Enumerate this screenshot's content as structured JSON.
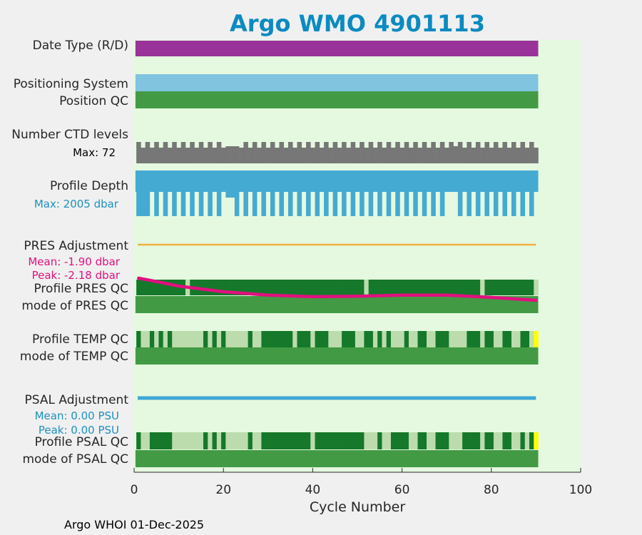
{
  "chart_data": {
    "type": "bar",
    "title": "Argo WMO 4901113",
    "xlabel": "Cycle Number",
    "xlim": [
      0,
      100
    ],
    "x_ticks": [
      "0",
      "20",
      "40",
      "60",
      "80",
      "100"
    ],
    "footer": "Argo WHOI 01-Dec-2025",
    "n_cycles": 90,
    "colors": {
      "title": "#0b8bc0",
      "plot_bg": "#e5f9e0",
      "date_type": "#993399",
      "positioning": "#80c4e0",
      "qc_mode": "#439a45",
      "ctd": "#777777",
      "depth": "#45aad2",
      "pres_adj": "#f0b040",
      "pres_line": "#e0107f",
      "qc_good": "#15782a",
      "qc_light": "#bcdcad",
      "qc_yellow": "#ffff00",
      "psal_adj": "#3fa8d6",
      "pres_text": "#e0107f",
      "psal_text": "#1e90c0",
      "depth_text": "#1e90c0"
    },
    "rows": {
      "date_type": {
        "label": "Date Type (R/D)"
      },
      "positioning": {
        "label": "Positioning System"
      },
      "position_qc": {
        "label": "Position QC"
      },
      "ctd_levels": {
        "label": "Number CTD levels",
        "max_label": "Max: 72",
        "short_cycles": [
          2,
          4,
          6,
          8,
          10,
          12,
          14,
          16,
          18,
          20,
          24,
          26,
          28,
          30,
          32,
          34,
          36,
          38,
          40,
          42,
          44,
          46,
          48,
          50,
          52,
          54,
          56,
          58,
          60,
          62,
          64,
          66,
          68,
          70,
          74,
          76,
          78,
          80,
          82,
          84,
          86,
          88,
          90
        ],
        "mid_cycles": [
          21,
          22,
          23,
          72
        ]
      },
      "profile_depth": {
        "label": "Profile Depth",
        "max_label": "Max: 2005 dbar",
        "full_cycles": [
          1,
          3,
          5,
          7,
          9,
          11,
          13,
          15,
          17,
          19,
          23,
          25,
          27,
          29,
          31,
          33,
          35,
          37,
          39,
          41,
          43,
          45,
          47,
          49,
          51,
          53,
          55,
          57,
          59,
          61,
          63,
          65,
          67,
          69,
          73,
          75,
          77,
          79,
          81,
          83,
          85,
          87,
          89
        ],
        "shallow_cycles": [
          2,
          4,
          6,
          8,
          10,
          12,
          14,
          16,
          18,
          20,
          24,
          26,
          28,
          30,
          32,
          34,
          36,
          38,
          40,
          42,
          44,
          46,
          48,
          50,
          52,
          54,
          56,
          58,
          60,
          62,
          64,
          66,
          68,
          70,
          72,
          74,
          76,
          78,
          80,
          82,
          84,
          86,
          88,
          90
        ],
        "very_shallow_cycles": [
          21,
          22
        ]
      },
      "pres_adjustment": {
        "label": "PRES Adjustment",
        "mean_label": "Mean: -1.90 dbar",
        "peak_label": "Peak: -2.18 dbar",
        "curve_cycles": [
          1,
          5,
          10,
          20,
          30,
          40,
          50,
          60,
          70,
          80,
          90
        ],
        "curve_values": [
          -1.2,
          -1.35,
          -1.55,
          -1.8,
          -1.95,
          -2.02,
          -2.0,
          -1.95,
          -1.95,
          -2.05,
          -2.18
        ]
      },
      "profile_pres_qc": {
        "label": "Profile PRES QC",
        "light_cycles": [
          12,
          52,
          78,
          90
        ],
        "yellow_cycles": []
      },
      "mode_pres_qc": {
        "label": "mode of PRES QC"
      },
      "profile_temp_qc": {
        "label": "Profile TEMP QC",
        "light_cycles": [
          2,
          3,
          5,
          7,
          9,
          10,
          11,
          12,
          13,
          14,
          15,
          17,
          19,
          21,
          22,
          23,
          24,
          25,
          27,
          28,
          36,
          40,
          44,
          45,
          46,
          50,
          51,
          54,
          56,
          58,
          59,
          60,
          62,
          63,
          66,
          67,
          71,
          72,
          73,
          74,
          78,
          81,
          82,
          85,
          86,
          89
        ],
        "yellow_cycles": [
          90
        ]
      },
      "mode_temp_qc": {
        "label": "mode of TEMP QC"
      },
      "psal_adjustment": {
        "label": "PSAL Adjustment",
        "mean_label": "Mean: 0.00 PSU",
        "peak_label": "Peak: 0.00 PSU"
      },
      "profile_psal_qc": {
        "label": "Profile PSAL QC",
        "light_cycles": [
          2,
          3,
          9,
          10,
          11,
          12,
          13,
          14,
          15,
          17,
          19,
          21,
          22,
          23,
          24,
          25,
          27,
          28,
          40,
          52,
          53,
          54,
          56,
          57,
          62,
          63,
          66,
          67,
          71,
          72,
          73,
          78,
          81,
          82,
          85,
          86,
          88
        ],
        "yellow_cycles": [
          90
        ]
      },
      "mode_psal_qc": {
        "label": "mode of PSAL QC"
      }
    }
  }
}
